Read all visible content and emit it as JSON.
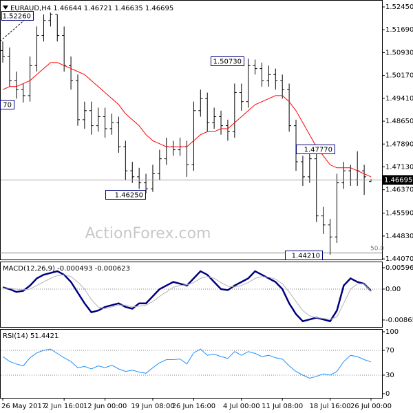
{
  "chart_data": [
    {
      "type": "ohlc",
      "title": "EURAUD,H4 1.46644 1.46721 1.46635 1.46695",
      "watermark": "ActionForex.com",
      "categories": [
        "26 May 2017",
        null,
        null,
        null,
        null,
        null,
        null,
        null,
        null,
        "2 Jun 16:00",
        null,
        null,
        null,
        null,
        null,
        "12 Jun 00:00",
        null,
        null,
        null,
        null,
        null,
        null,
        "19 Jun 08:00",
        null,
        null,
        null,
        null,
        null,
        "26 Jun 16:00",
        null,
        null,
        null,
        null,
        null,
        null,
        "4 Jul 00:00",
        null,
        null,
        null,
        null,
        null,
        "11 Jul 08:00",
        null,
        null,
        null,
        null,
        null,
        null,
        "18 Jul 16:00",
        null,
        null,
        null,
        null,
        null,
        "26 Jul 00:00"
      ],
      "open": [
        1.51,
        1.508,
        1.5,
        1.497,
        1.495,
        1.505,
        1.515,
        1.52,
        1.522,
        1.515,
        1.505,
        1.5,
        1.487,
        1.49,
        1.485,
        1.488,
        1.484,
        1.486,
        1.478,
        1.47,
        1.468,
        1.466,
        1.464,
        1.469,
        1.474,
        1.478,
        1.477,
        1.478,
        1.472,
        1.49,
        1.494,
        1.486,
        1.488,
        1.485,
        1.483,
        1.496,
        1.493,
        1.505,
        1.504,
        1.5,
        1.502,
        1.5,
        1.497,
        1.485,
        1.473,
        1.468,
        1.474,
        1.455,
        1.452,
        1.448,
        1.466,
        1.47,
        1.467,
        1.47,
        1.46644
      ],
      "high": [
        1.513,
        1.511,
        1.503,
        1.499,
        1.508,
        1.518,
        1.522,
        1.5226,
        1.522,
        1.518,
        1.508,
        1.502,
        1.493,
        1.493,
        1.491,
        1.491,
        1.489,
        1.488,
        1.48,
        1.473,
        1.471,
        1.469,
        1.472,
        1.477,
        1.481,
        1.48,
        1.481,
        1.48,
        1.493,
        1.497,
        1.496,
        1.491,
        1.49,
        1.487,
        1.499,
        1.499,
        1.5073,
        1.507,
        1.506,
        1.505,
        1.504,
        1.502,
        1.499,
        1.487,
        1.475,
        1.4777,
        1.476,
        1.458,
        1.454,
        1.469,
        1.473,
        1.472,
        1.4765,
        1.472,
        1.46721
      ],
      "low": [
        1.506,
        1.498,
        1.494,
        1.4927,
        1.493,
        1.503,
        1.513,
        1.518,
        1.513,
        1.503,
        1.497,
        1.485,
        1.484,
        1.482,
        1.483,
        1.481,
        1.482,
        1.476,
        1.467,
        1.466,
        1.464,
        1.4625,
        1.463,
        1.467,
        1.472,
        1.475,
        1.475,
        1.468,
        1.47,
        1.488,
        1.483,
        1.484,
        1.482,
        1.48,
        1.481,
        1.49,
        1.491,
        1.502,
        1.498,
        1.498,
        1.497,
        1.494,
        1.483,
        1.47,
        1.465,
        1.466,
        1.453,
        1.449,
        1.4421,
        1.446,
        1.464,
        1.465,
        1.465,
        1.462,
        1.46635
      ],
      "close": [
        1.508,
        1.5,
        1.497,
        1.495,
        1.505,
        1.515,
        1.52,
        1.522,
        1.515,
        1.505,
        1.5,
        1.487,
        1.49,
        1.485,
        1.488,
        1.484,
        1.486,
        1.478,
        1.47,
        1.468,
        1.466,
        1.464,
        1.469,
        1.474,
        1.478,
        1.477,
        1.478,
        1.472,
        1.49,
        1.494,
        1.486,
        1.488,
        1.485,
        1.483,
        1.496,
        1.493,
        1.505,
        1.504,
        1.5,
        1.502,
        1.5,
        1.497,
        1.485,
        1.473,
        1.468,
        1.474,
        1.455,
        1.452,
        1.448,
        1.466,
        1.47,
        1.467,
        1.47,
        1.468,
        1.46695
      ],
      "color": "#000000",
      "moving_average": {
        "color": "#ff0000",
        "values": [
          1.497,
          1.498,
          1.498,
          1.499,
          1.5,
          1.502,
          1.504,
          1.506,
          1.506,
          1.505,
          1.504,
          1.503,
          1.502,
          1.5,
          1.498,
          1.496,
          1.494,
          1.492,
          1.489,
          1.487,
          1.485,
          1.482,
          1.48,
          1.479,
          1.478,
          1.478,
          1.478,
          1.478,
          1.48,
          1.482,
          1.483,
          1.483,
          1.484,
          1.484,
          1.486,
          1.488,
          1.49,
          1.492,
          1.493,
          1.494,
          1.495,
          1.495,
          1.493,
          1.49,
          1.486,
          1.482,
          1.478,
          1.475,
          1.472,
          1.471,
          1.471,
          1.471,
          1.47,
          1.469,
          1.468
        ]
      },
      "annotations": [
        "1.52260",
        "70",
        "1.46250",
        "1.50730",
        "1.47770",
        "1.44210",
        "50.0"
      ],
      "last_label": "1.46695",
      "ylim": [
        1.4405,
        1.5268
      ],
      "yticks": [
        {
          "value": 1.5245,
          "label": "1.52450"
        },
        {
          "value": 1.5169,
          "label": "1.51690"
        },
        {
          "value": 1.5093,
          "label": "1.50930"
        },
        {
          "value": 1.5017,
          "label": "1.50170"
        },
        {
          "value": 1.4941,
          "label": "1.49410"
        },
        {
          "value": 1.4865,
          "label": "1.48650"
        },
        {
          "value": 1.4789,
          "label": "1.47890"
        },
        {
          "value": 1.4713,
          "label": "1.47130"
        },
        {
          "value": 1.4637,
          "label": "1.46370"
        },
        {
          "value": 1.4559,
          "label": "1.45590"
        },
        {
          "value": 1.4483,
          "label": "1.44830"
        },
        {
          "value": 1.4407,
          "label": "1.44070"
        }
      ]
    },
    {
      "type": "line",
      "title": "MACD(12,26,9) -0.000493 -0.000623",
      "series": [
        {
          "color": "#000080",
          "values": [
            0.0005,
            0.0,
            -0.0008,
            -0.0005,
            0.001,
            0.003,
            0.004,
            0.0045,
            0.005,
            0.004,
            0.002,
            -0.001,
            -0.004,
            -0.0065,
            -0.006,
            -0.005,
            -0.0045,
            -0.004,
            -0.005,
            -0.0055,
            -0.004,
            -0.004,
            -0.002,
            0.0,
            0.001,
            0.002,
            0.0015,
            0.001,
            0.003,
            0.005,
            0.004,
            0.002,
            0.0,
            -0.0003,
            0.001,
            0.002,
            0.003,
            0.005,
            0.004,
            0.003,
            0.002,
            0.0,
            -0.004,
            -0.007,
            -0.009,
            -0.0085,
            -0.008,
            -0.0085,
            -0.009,
            -0.006,
            0.001,
            0.003,
            0.002,
            0.0015,
            -0.0005
          ]
        },
        {
          "color": "#b4b4b4",
          "values": [
            0.0003,
            0.0002,
            0.0,
            -0.0002,
            0.0,
            0.001,
            0.002,
            0.003,
            0.0038,
            0.004,
            0.0035,
            0.002,
            0.0,
            -0.003,
            -0.005,
            -0.0055,
            -0.005,
            -0.0045,
            -0.0045,
            -0.005,
            -0.0048,
            -0.0045,
            -0.0035,
            -0.002,
            -0.0008,
            0.0005,
            0.001,
            0.0012,
            0.0018,
            0.003,
            0.0035,
            0.003,
            0.0018,
            0.0008,
            0.0006,
            0.001,
            0.0018,
            0.003,
            0.0035,
            0.0033,
            0.0028,
            0.0015,
            -0.0008,
            -0.0035,
            -0.006,
            -0.0075,
            -0.008,
            -0.0082,
            -0.0085,
            -0.0078,
            -0.004,
            0.0,
            0.0015,
            0.0015,
            -0.0006
          ]
        }
      ],
      "levels": [
        0
      ],
      "ylim": [
        -0.0106,
        0.0077
      ],
      "yticks": [
        0.005968,
        {
          "value": 0,
          "label": "0.00"
        },
        -0.008657
      ]
    },
    {
      "type": "line",
      "title": "RSI(14) 51.4421",
      "series": [
        {
          "color": "#1e90ff",
          "values": [
            60,
            52,
            48,
            45,
            58,
            66,
            70,
            72,
            65,
            58,
            52,
            42,
            44,
            40,
            45,
            42,
            46,
            40,
            36,
            38,
            35,
            33,
            42,
            50,
            55,
            55,
            56,
            48,
            66,
            72,
            62,
            64,
            60,
            57,
            68,
            62,
            68,
            65,
            60,
            62,
            58,
            56,
            45,
            36,
            30,
            25,
            28,
            32,
            30,
            36,
            52,
            62,
            60,
            55,
            51.4421
          ]
        }
      ],
      "levels": [
        70,
        30
      ],
      "ylim": [
        -6.7,
        104.4
      ],
      "yticks": [
        100,
        70,
        30,
        0
      ]
    }
  ]
}
